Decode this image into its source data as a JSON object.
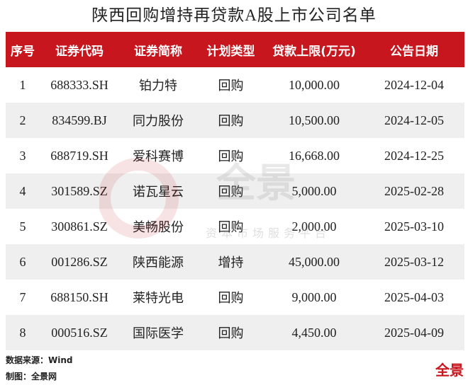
{
  "header": {
    "title": "陕西回购增持再贷款A股上市公司名单"
  },
  "table": {
    "columns": [
      "序号",
      "证券代码",
      "证券简称",
      "计划类型",
      "贷款上限(万元)",
      "公告日期"
    ],
    "rows": [
      [
        "1",
        "688333.SH",
        "铂力特",
        "回购",
        "10,000.00",
        "2024-12-04"
      ],
      [
        "2",
        "834599.BJ",
        "同力股份",
        "回购",
        "10,500.00",
        "2024-12-05"
      ],
      [
        "3",
        "688719.SH",
        "爱科赛博",
        "回购",
        "16,668.00",
        "2024-12-25"
      ],
      [
        "4",
        "301589.SZ",
        "诺瓦星云",
        "回购",
        "5,000.00",
        "2025-02-28"
      ],
      [
        "5",
        "300861.SZ",
        "美畅股份",
        "回购",
        "2,000.00",
        "2025-03-10"
      ],
      [
        "6",
        "001286.SZ",
        "陕西能源",
        "增持",
        "45,000.00",
        "2025-03-12"
      ],
      [
        "7",
        "688150.SH",
        "莱特光电",
        "回购",
        "9,000.00",
        "2025-04-03"
      ],
      [
        "8",
        "000516.SZ",
        "国际医学",
        "回购",
        "4,450.00",
        "2025-04-09"
      ]
    ]
  },
  "footer": {
    "source": "数据来源：Wind",
    "credit": "制图：全景网"
  },
  "watermark": {
    "brand": "全景",
    "slogan": "资本市场服务平台"
  },
  "logo": {
    "text": "全景"
  }
}
